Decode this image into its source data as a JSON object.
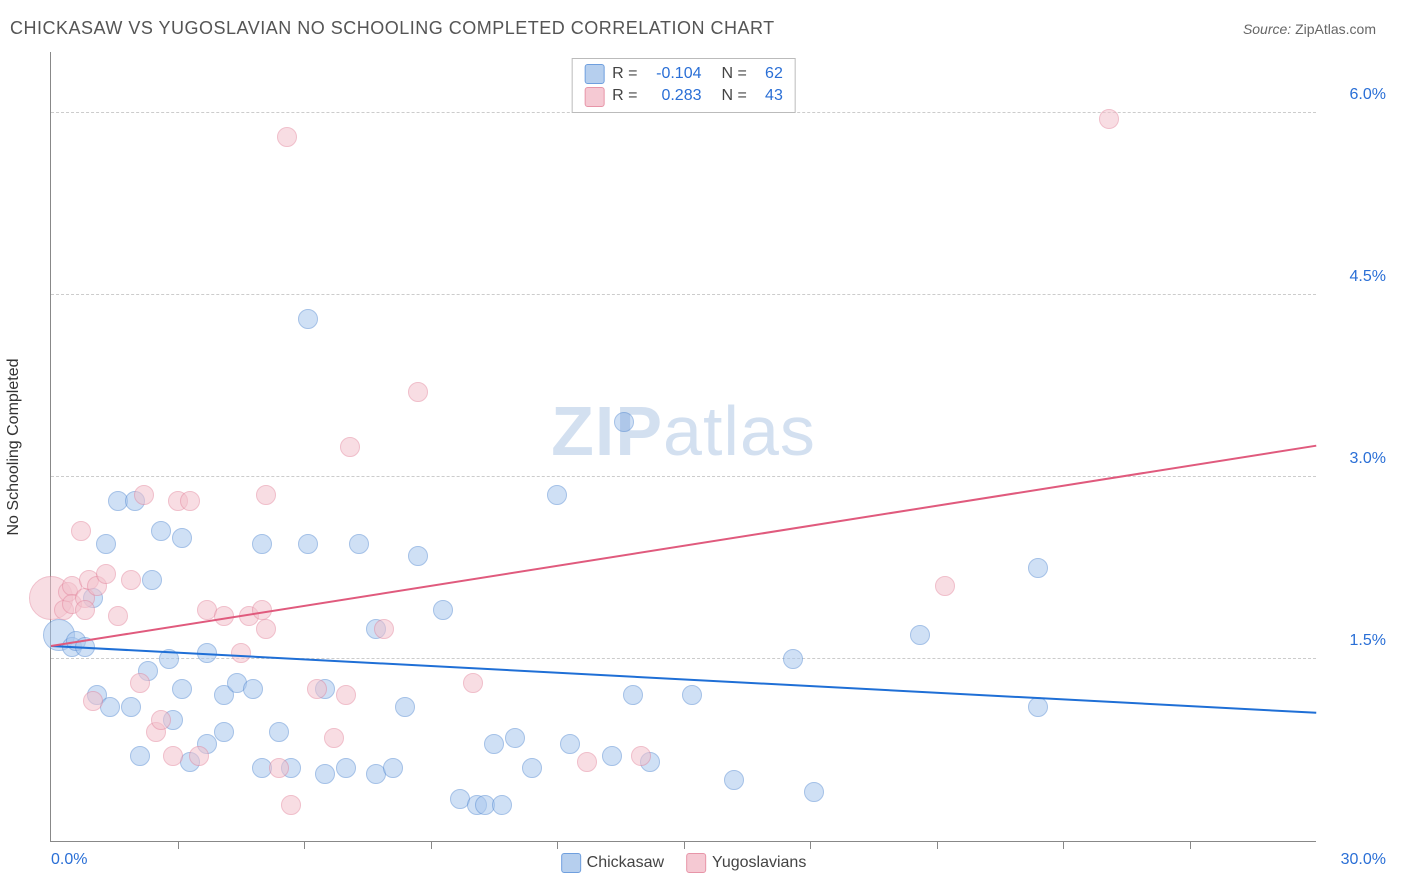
{
  "header": {
    "title": "CHICKASAW VS YUGOSLAVIAN NO SCHOOLING COMPLETED CORRELATION CHART",
    "source_prefix": "Source: ",
    "source_name": "ZipAtlas.com"
  },
  "watermark": {
    "part1": "ZIP",
    "part2": "atlas"
  },
  "chart": {
    "type": "scatter",
    "xlim": [
      0,
      30
    ],
    "ylim": [
      0,
      6.5
    ],
    "xticks": [
      3,
      6,
      9,
      12,
      15,
      18,
      21,
      24,
      27
    ],
    "xlabel_min": "0.0%",
    "xlabel_max": "30.0%",
    "yticks": [
      {
        "v": 1.5,
        "label": "1.5%"
      },
      {
        "v": 3.0,
        "label": "3.0%"
      },
      {
        "v": 4.5,
        "label": "4.5%"
      },
      {
        "v": 6.0,
        "label": "6.0%"
      }
    ],
    "yaxis_title": "No Schooling Completed",
    "grid_color": "#cccccc",
    "background_color": "#ffffff",
    "tick_label_color": "#2a6fd6",
    "marker_radius": 10,
    "marker_opacity": 0.55,
    "series": [
      {
        "name": "Chickasaw",
        "color_fill": "#a9c7ee",
        "color_stroke": "#5b8fd4",
        "legend_swatch_fill": "#b6cfee",
        "legend_swatch_border": "#6f9fde",
        "trend": {
          "color": "#1f6fd6",
          "x1": 0,
          "y1": 1.6,
          "x2": 30,
          "y2": 1.05
        },
        "R": "-0.104",
        "N": "62",
        "points": [
          {
            "x": 0.2,
            "y": 1.7,
            "r": 16
          },
          {
            "x": 0.5,
            "y": 1.6
          },
          {
            "x": 0.6,
            "y": 1.65
          },
          {
            "x": 0.8,
            "y": 1.6
          },
          {
            "x": 1.0,
            "y": 2.0
          },
          {
            "x": 1.1,
            "y": 1.2
          },
          {
            "x": 1.3,
            "y": 2.45
          },
          {
            "x": 1.4,
            "y": 1.1
          },
          {
            "x": 1.6,
            "y": 2.8
          },
          {
            "x": 1.9,
            "y": 1.1
          },
          {
            "x": 2.0,
            "y": 2.8
          },
          {
            "x": 2.1,
            "y": 0.7
          },
          {
            "x": 2.3,
            "y": 1.4
          },
          {
            "x": 2.4,
            "y": 2.15
          },
          {
            "x": 2.6,
            "y": 2.55
          },
          {
            "x": 2.8,
            "y": 1.5
          },
          {
            "x": 2.9,
            "y": 1.0
          },
          {
            "x": 3.1,
            "y": 1.25
          },
          {
            "x": 3.1,
            "y": 2.5
          },
          {
            "x": 3.3,
            "y": 0.65
          },
          {
            "x": 3.7,
            "y": 1.55
          },
          {
            "x": 3.7,
            "y": 0.8
          },
          {
            "x": 4.1,
            "y": 1.2
          },
          {
            "x": 4.1,
            "y": 0.9
          },
          {
            "x": 4.4,
            "y": 1.3
          },
          {
            "x": 4.8,
            "y": 1.25
          },
          {
            "x": 5.0,
            "y": 2.45
          },
          {
            "x": 5.0,
            "y": 0.6
          },
          {
            "x": 5.4,
            "y": 0.9
          },
          {
            "x": 5.7,
            "y": 0.6
          },
          {
            "x": 6.1,
            "y": 4.3
          },
          {
            "x": 6.1,
            "y": 2.45
          },
          {
            "x": 6.5,
            "y": 1.25
          },
          {
            "x": 6.5,
            "y": 0.55
          },
          {
            "x": 7.0,
            "y": 0.6
          },
          {
            "x": 7.3,
            "y": 2.45
          },
          {
            "x": 7.7,
            "y": 1.75
          },
          {
            "x": 7.7,
            "y": 0.55
          },
          {
            "x": 8.1,
            "y": 0.6
          },
          {
            "x": 8.4,
            "y": 1.1
          },
          {
            "x": 8.7,
            "y": 2.35
          },
          {
            "x": 9.3,
            "y": 1.9
          },
          {
            "x": 9.7,
            "y": 0.35
          },
          {
            "x": 10.1,
            "y": 0.3
          },
          {
            "x": 10.3,
            "y": 0.3
          },
          {
            "x": 10.5,
            "y": 0.8
          },
          {
            "x": 10.7,
            "y": 0.3
          },
          {
            "x": 11.0,
            "y": 0.85
          },
          {
            "x": 11.4,
            "y": 0.6
          },
          {
            "x": 12.0,
            "y": 2.85
          },
          {
            "x": 12.3,
            "y": 0.8
          },
          {
            "x": 13.3,
            "y": 0.7
          },
          {
            "x": 13.6,
            "y": 3.45
          },
          {
            "x": 13.8,
            "y": 1.2
          },
          {
            "x": 14.2,
            "y": 0.65
          },
          {
            "x": 15.2,
            "y": 1.2
          },
          {
            "x": 16.2,
            "y": 0.5
          },
          {
            "x": 17.6,
            "y": 1.5
          },
          {
            "x": 18.1,
            "y": 0.4
          },
          {
            "x": 20.6,
            "y": 1.7
          },
          {
            "x": 23.4,
            "y": 2.25
          },
          {
            "x": 23.4,
            "y": 1.1
          }
        ]
      },
      {
        "name": "Yugoslavians",
        "color_fill": "#f3c2cd",
        "color_stroke": "#e48aa0",
        "legend_swatch_fill": "#f5c9d3",
        "legend_swatch_border": "#e795a8",
        "trend": {
          "color": "#e05a7d",
          "x1": 0,
          "y1": 1.6,
          "x2": 30,
          "y2": 3.25
        },
        "R": "0.283",
        "N": "43",
        "points": [
          {
            "x": 0.0,
            "y": 2.0,
            "r": 22
          },
          {
            "x": 0.3,
            "y": 1.9
          },
          {
            "x": 0.4,
            "y": 2.05
          },
          {
            "x": 0.5,
            "y": 2.1
          },
          {
            "x": 0.5,
            "y": 1.95
          },
          {
            "x": 0.7,
            "y": 2.55
          },
          {
            "x": 0.8,
            "y": 2.0
          },
          {
            "x": 0.8,
            "y": 1.9
          },
          {
            "x": 0.9,
            "y": 2.15
          },
          {
            "x": 1.0,
            "y": 1.15
          },
          {
            "x": 1.1,
            "y": 2.1
          },
          {
            "x": 1.3,
            "y": 2.2
          },
          {
            "x": 1.6,
            "y": 1.85
          },
          {
            "x": 1.9,
            "y": 2.15
          },
          {
            "x": 2.1,
            "y": 1.3
          },
          {
            "x": 2.2,
            "y": 2.85
          },
          {
            "x": 2.5,
            "y": 0.9
          },
          {
            "x": 2.6,
            "y": 1.0
          },
          {
            "x": 2.9,
            "y": 0.7
          },
          {
            "x": 3.0,
            "y": 2.8
          },
          {
            "x": 3.3,
            "y": 2.8
          },
          {
            "x": 3.5,
            "y": 0.7
          },
          {
            "x": 3.7,
            "y": 1.9
          },
          {
            "x": 4.1,
            "y": 1.85
          },
          {
            "x": 4.5,
            "y": 1.55
          },
          {
            "x": 4.7,
            "y": 1.85
          },
          {
            "x": 5.0,
            "y": 1.9
          },
          {
            "x": 5.1,
            "y": 2.85
          },
          {
            "x": 5.1,
            "y": 1.75
          },
          {
            "x": 5.4,
            "y": 0.6
          },
          {
            "x": 5.6,
            "y": 5.8
          },
          {
            "x": 5.7,
            "y": 0.3
          },
          {
            "x": 6.3,
            "y": 1.25
          },
          {
            "x": 6.7,
            "y": 0.85
          },
          {
            "x": 7.0,
            "y": 1.2
          },
          {
            "x": 7.1,
            "y": 3.25
          },
          {
            "x": 7.9,
            "y": 1.75
          },
          {
            "x": 8.7,
            "y": 3.7
          },
          {
            "x": 10.0,
            "y": 1.3
          },
          {
            "x": 12.7,
            "y": 0.65
          },
          {
            "x": 14.0,
            "y": 0.7
          },
          {
            "x": 21.2,
            "y": 2.1
          },
          {
            "x": 25.1,
            "y": 5.95
          }
        ]
      }
    ],
    "legend_top": {
      "R_label": "R =",
      "N_label": "N ="
    }
  }
}
